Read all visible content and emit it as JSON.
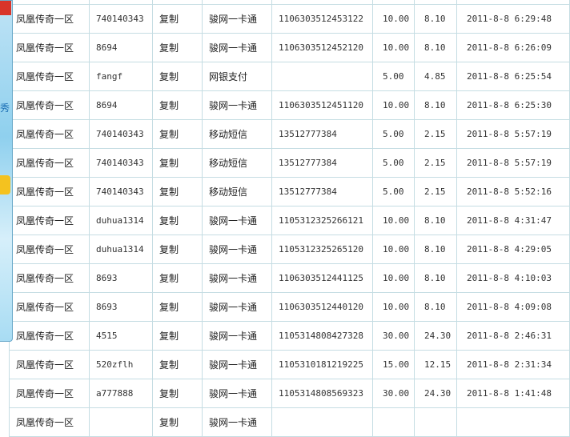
{
  "side_ad": {
    "text": "秀",
    "colors": {
      "panel": "#a8dcf3",
      "accent_red": "#d8352a",
      "accent_yellow": "#f4c21f"
    }
  },
  "copy_label": "复制",
  "rows": [
    {
      "server": "",
      "account": "",
      "copy": "",
      "method": "",
      "card": "",
      "amount": "",
      "net": "",
      "time": ""
    },
    {
      "server": "凤凰传奇一区",
      "account": "740140343",
      "copy": "复制",
      "method": "骏网一卡通",
      "card": "1106303512453122",
      "amount": "10.00",
      "net": "8.10",
      "time": "2011-8-8 6:29:48"
    },
    {
      "server": "凤凰传奇一区",
      "account": "8694",
      "copy": "复制",
      "method": "骏网一卡通",
      "card": "1106303512452120",
      "amount": "10.00",
      "net": "8.10",
      "time": "2011-8-8 6:26:09"
    },
    {
      "server": "凤凰传奇一区",
      "account": "fangf",
      "copy": "复制",
      "method": "网银支付",
      "card": "",
      "amount": "5.00",
      "net": "4.85",
      "time": "2011-8-8 6:25:54"
    },
    {
      "server": "凤凰传奇一区",
      "account": "8694",
      "copy": "复制",
      "method": "骏网一卡通",
      "card": "1106303512451120",
      "amount": "10.00",
      "net": "8.10",
      "time": "2011-8-8 6:25:30"
    },
    {
      "server": "凤凰传奇一区",
      "account": "740140343",
      "copy": "复制",
      "method": "移动短信",
      "card": "13512777384",
      "amount": "5.00",
      "net": "2.15",
      "time": "2011-8-8 5:57:19"
    },
    {
      "server": "凤凰传奇一区",
      "account": "740140343",
      "copy": "复制",
      "method": "移动短信",
      "card": "13512777384",
      "amount": "5.00",
      "net": "2.15",
      "time": "2011-8-8 5:57:19"
    },
    {
      "server": "凤凰传奇一区",
      "account": "740140343",
      "copy": "复制",
      "method": "移动短信",
      "card": "13512777384",
      "amount": "5.00",
      "net": "2.15",
      "time": "2011-8-8 5:52:16"
    },
    {
      "server": "凤凰传奇一区",
      "account": "duhua1314",
      "copy": "复制",
      "method": "骏网一卡通",
      "card": "1105312325266121",
      "amount": "10.00",
      "net": "8.10",
      "time": "2011-8-8 4:31:47"
    },
    {
      "server": "凤凰传奇一区",
      "account": "duhua1314",
      "copy": "复制",
      "method": "骏网一卡通",
      "card": "1105312325265120",
      "amount": "10.00",
      "net": "8.10",
      "time": "2011-8-8 4:29:05"
    },
    {
      "server": "凤凰传奇一区",
      "account": "8693",
      "copy": "复制",
      "method": "骏网一卡通",
      "card": "1106303512441125",
      "amount": "10.00",
      "net": "8.10",
      "time": "2011-8-8 4:10:03"
    },
    {
      "server": "凤凰传奇一区",
      "account": "8693",
      "copy": "复制",
      "method": "骏网一卡通",
      "card": "1106303512440120",
      "amount": "10.00",
      "net": "8.10",
      "time": "2011-8-8 4:09:08"
    },
    {
      "server": "凤凰传奇一区",
      "account": "4515",
      "copy": "复制",
      "method": "骏网一卡通",
      "card": "1105314808427328",
      "amount": "30.00",
      "net": "24.30",
      "time": "2011-8-8 2:46:31"
    },
    {
      "server": "凤凰传奇一区",
      "account": "520zflh",
      "copy": "复制",
      "method": "骏网一卡通",
      "card": "1105310181219225",
      "amount": "15.00",
      "net": "12.15",
      "time": "2011-8-8 2:31:34"
    },
    {
      "server": "凤凰传奇一区",
      "account": "a777888",
      "copy": "复制",
      "method": "骏网一卡通",
      "card": "1105314808569323",
      "amount": "30.00",
      "net": "24.30",
      "time": "2011-8-8 1:41:48"
    },
    {
      "server": "凤凰传奇一区",
      "account": "",
      "copy": "复制",
      "method": "骏网一卡通",
      "card": "",
      "amount": "",
      "net": "",
      "time": ""
    }
  ]
}
